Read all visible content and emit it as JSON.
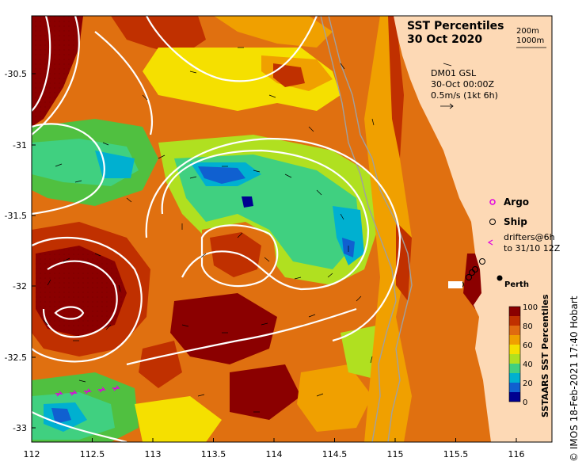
{
  "title": {
    "line1": "SST Percentiles",
    "line2": "30 Oct 2020"
  },
  "depth_legend": {
    "d200": "200m",
    "d1000": "1000m"
  },
  "current_note": {
    "line1": "DM01 GSL",
    "line2": "30-Oct 00:00Z",
    "line3": "0.5m/s (1kt 6h)"
  },
  "markers": {
    "argo": "Argo",
    "ship": "Ship",
    "drifters_line1": "drifters@6h",
    "drifters_line2": "to 31/10 12Z",
    "perth": "Perth"
  },
  "colors": {
    "argo": "#e000e0",
    "drifter": "#e000e0",
    "land": "#fdd9b5",
    "contour": "#ffffff",
    "bathy": "#a0a0a0"
  },
  "axes": {
    "x_ticks": [
      "112",
      "112.5",
      "113",
      "113.5",
      "114",
      "114.5",
      "115",
      "115.5",
      "116"
    ],
    "y_ticks": [
      "-30.5",
      "-31",
      "-31.5",
      "-32",
      "-32.5",
      "-33"
    ],
    "xlim": [
      112,
      116.3
    ],
    "ylim": [
      -33.15,
      -30.1
    ]
  },
  "colorbar": {
    "label": "SSTAARS SST Percentiles",
    "ticks": [
      "100",
      "80",
      "60",
      "40",
      "20",
      "0"
    ],
    "colors": [
      "#8b0000",
      "#c03000",
      "#e06a10",
      "#f0a000",
      "#f5e000",
      "#b0e020",
      "#40d080",
      "#00b0d0",
      "#1060d0",
      "#000090"
    ]
  },
  "credit": "© IMOS 18-Feb-2021 17:40 Hobart"
}
